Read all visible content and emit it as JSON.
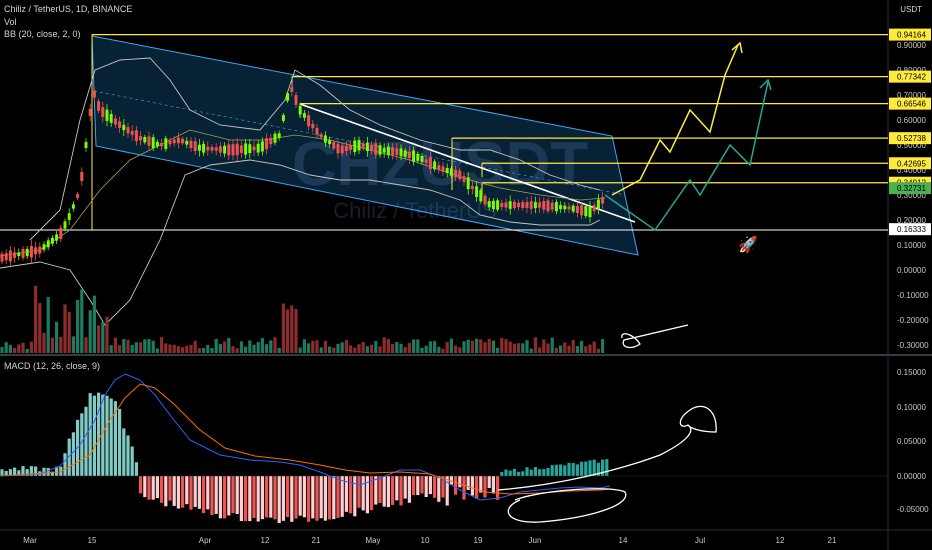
{
  "legend": {
    "symbol": "Chiliz / TetherUS, 1D, BINANCE",
    "volume": "Vol",
    "bollinger": "BB (20, close, 2, 0)",
    "macd": "MACD (12, 26, close, 9)"
  },
  "currency": "USDT",
  "watermark": "CHZUSDT",
  "watermark_sub": "Chiliz / TetherUS",
  "colors": {
    "up": "#7cfc00",
    "down": "#ef5350",
    "yellow": "#ffeb3b",
    "channel": "#2196f3",
    "white": "#ffffff",
    "macd_line": "#2962ff",
    "signal_line": "#ff6d00",
    "hist_up": "#26a69a",
    "hist_down": "#ef5350"
  },
  "price_axis_ticks": [
    "0.90000",
    "0.80000",
    "0.70000",
    "0.60000",
    "0.50000",
    "0.40000",
    "0.30000",
    "0.20000",
    "0.10000",
    "0.00000",
    "-0.10000",
    "-0.20000",
    "-0.30000"
  ],
  "price_tags": [
    {
      "label": "0.94164",
      "value": 0.94164,
      "bg": "#ffeb3b",
      "fg": "#000"
    },
    {
      "label": "0.77342",
      "value": 0.77342,
      "bg": "#ffeb3b",
      "fg": "#000"
    },
    {
      "label": "0.66546",
      "value": 0.66546,
      "bg": "#ffeb3b",
      "fg": "#000"
    },
    {
      "label": "0.52738",
      "value": 0.52738,
      "bg": "#ffeb3b",
      "fg": "#000"
    },
    {
      "label": "0.42695",
      "value": 0.42695,
      "bg": "#ffeb3b",
      "fg": "#000"
    },
    {
      "label": "0.34912",
      "value": 0.34912,
      "bg": "#ffeb3b",
      "fg": "#000"
    },
    {
      "label": "0.32731",
      "value": 0.32731,
      "bg": "#4caf50",
      "fg": "#000"
    },
    {
      "label": "0.16333",
      "value": 0.16333,
      "bg": "#ffffff",
      "fg": "#000"
    }
  ],
  "macd_axis_ticks": [
    "0.15000",
    "0.10000",
    "0.05000",
    "0.00000",
    "-0.05000"
  ],
  "date_axis": [
    "Mar",
    "15",
    "Apr",
    "12",
    "21",
    "May",
    "10",
    "19",
    "Jun",
    "14",
    "Jul",
    "12",
    "21"
  ],
  "rocket": "🚀"
}
